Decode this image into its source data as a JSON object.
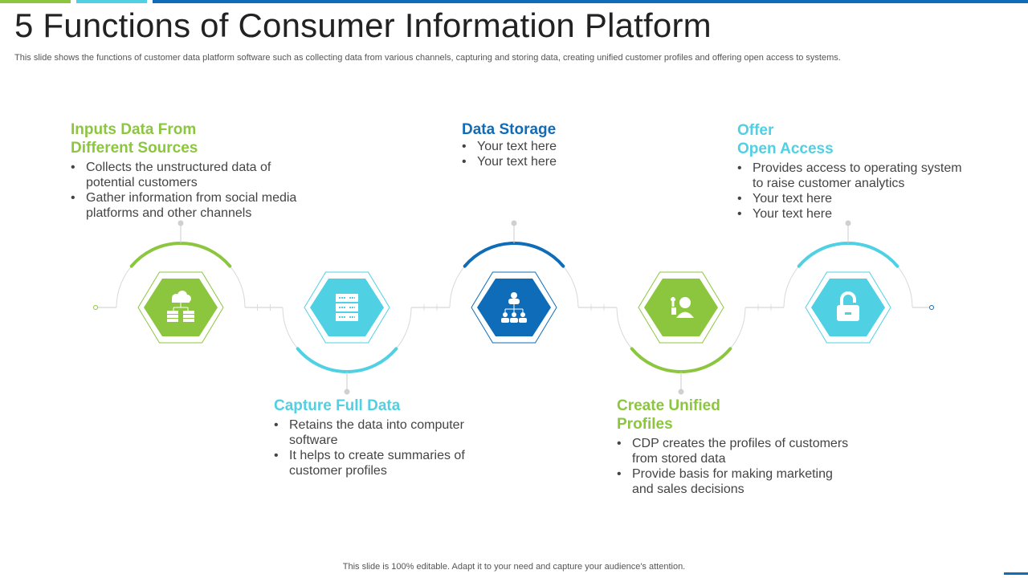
{
  "title": "5 Functions of Consumer Information Platform",
  "subtitle": "This slide shows the functions of customer data platform software such as collecting data from various channels, capturing and storing data, creating unified customer profiles and offering open access to systems.",
  "footer": "This slide is 100% editable. Adapt it to your need and capture your audience's attention.",
  "colors": {
    "green": "#8cc63f",
    "cyan": "#4fd0e3",
    "blue": "#0e6cb8"
  },
  "steps": [
    {
      "title": "Inputs Data From Different Sources",
      "title_lines": [
        "Inputs Data From",
        "Different Sources"
      ],
      "icon": "cloud-database-icon",
      "color": "green",
      "bullets": [
        "Collects the unstructured  data of potential customers",
        "Gather information from social media platforms and other channels"
      ]
    },
    {
      "title": "Capture Full Data",
      "title_lines": [
        "Capture Full Data",
        ""
      ],
      "icon": "server-icon",
      "color": "cyan",
      "bullets": [
        "Retains the data into computer software",
        "It helps to create summaries of customer profiles"
      ]
    },
    {
      "title": "Data Storage",
      "title_lines": [
        "Data Storage",
        ""
      ],
      "icon": "hierarchy-icon",
      "color": "blue",
      "bullets": [
        "Your text here",
        "Your text here"
      ]
    },
    {
      "title": "Create Unified Profiles",
      "title_lines": [
        "Create Unified",
        "Profiles"
      ],
      "icon": "add-user-icon",
      "color": "green",
      "bullets": [
        "CDP creates the profiles of customers from stored data",
        "Provide basis for making marketing and sales decisions"
      ]
    },
    {
      "title": "Offer Open Access",
      "title_lines": [
        "Offer",
        "Open Access"
      ],
      "icon": "unlock-icon",
      "color": "cyan",
      "bullets": [
        "Provides access to operating system to raise customer analytics",
        "Your text here",
        "Your text here"
      ]
    }
  ]
}
